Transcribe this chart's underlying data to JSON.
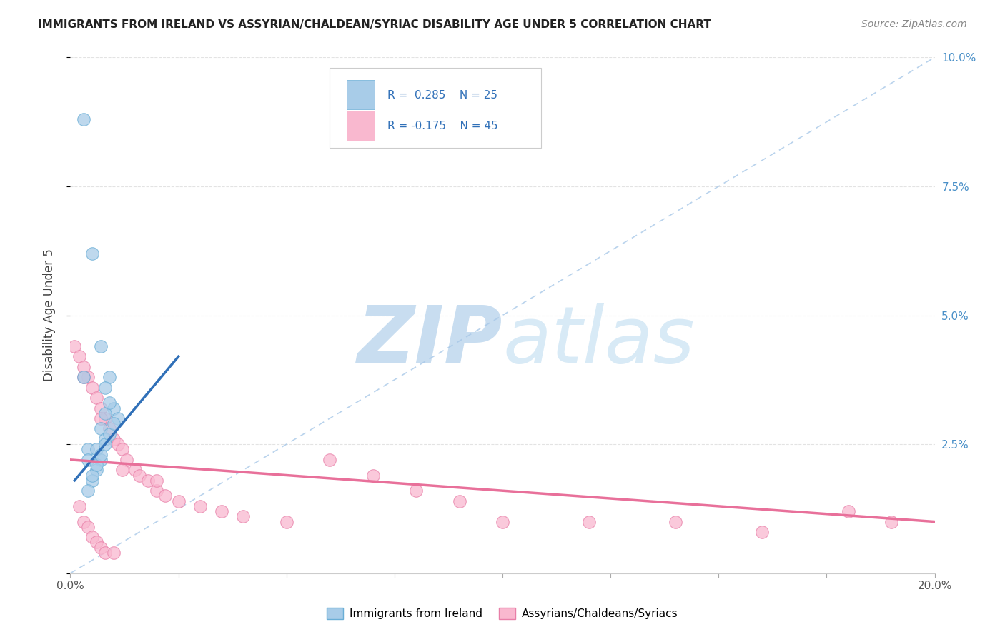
{
  "title": "IMMIGRANTS FROM IRELAND VS ASSYRIAN/CHALDEAN/SYRIAC DISABILITY AGE UNDER 5 CORRELATION CHART",
  "source": "Source: ZipAtlas.com",
  "ylabel": "Disability Age Under 5",
  "xlim": [
    0.0,
    0.2
  ],
  "ylim": [
    0.0,
    0.1
  ],
  "ireland_color": "#a8cce8",
  "ireland_edge": "#6aaed6",
  "assyrian_color": "#f9b8cf",
  "assyrian_edge": "#e87fa8",
  "trend_ireland_color": "#3070b8",
  "trend_assyrian_color": "#e8709a",
  "diag_color": "#a8c8e8",
  "watermark_zip_color": "#c5ddef",
  "watermark_atlas_color": "#d8e8f4",
  "background_color": "#ffffff",
  "grid_color": "#e0e0e0",
  "right_tick_color": "#4a90c8",
  "ireland_x": [
    0.003,
    0.005,
    0.004,
    0.004,
    0.003,
    0.007,
    0.009,
    0.008,
    0.01,
    0.011,
    0.007,
    0.008,
    0.006,
    0.007,
    0.006,
    0.005,
    0.004,
    0.005,
    0.006,
    0.007,
    0.008,
    0.009,
    0.01,
    0.008,
    0.009
  ],
  "ireland_y": [
    0.088,
    0.062,
    0.024,
    0.022,
    0.038,
    0.044,
    0.038,
    0.036,
    0.032,
    0.03,
    0.028,
    0.026,
    0.024,
    0.022,
    0.02,
    0.018,
    0.016,
    0.019,
    0.021,
    0.023,
    0.025,
    0.027,
    0.029,
    0.031,
    0.033
  ],
  "assyrian_x": [
    0.001,
    0.002,
    0.002,
    0.003,
    0.003,
    0.004,
    0.004,
    0.005,
    0.005,
    0.006,
    0.006,
    0.007,
    0.007,
    0.008,
    0.008,
    0.009,
    0.01,
    0.01,
    0.011,
    0.012,
    0.013,
    0.015,
    0.016,
    0.018,
    0.02,
    0.022,
    0.025,
    0.03,
    0.035,
    0.04,
    0.05,
    0.06,
    0.07,
    0.08,
    0.09,
    0.1,
    0.12,
    0.14,
    0.16,
    0.18,
    0.19,
    0.003,
    0.007,
    0.012,
    0.02
  ],
  "assyrian_y": [
    0.044,
    0.042,
    0.013,
    0.04,
    0.01,
    0.038,
    0.009,
    0.036,
    0.007,
    0.034,
    0.006,
    0.032,
    0.005,
    0.03,
    0.004,
    0.028,
    0.026,
    0.004,
    0.025,
    0.024,
    0.022,
    0.02,
    0.019,
    0.018,
    0.016,
    0.015,
    0.014,
    0.013,
    0.012,
    0.011,
    0.01,
    0.022,
    0.019,
    0.016,
    0.014,
    0.01,
    0.01,
    0.01,
    0.008,
    0.012,
    0.01,
    0.038,
    0.03,
    0.02,
    0.018
  ],
  "trend_ir_x0": 0.001,
  "trend_ir_x1": 0.025,
  "trend_ir_y0": 0.018,
  "trend_ir_y1": 0.042,
  "trend_as_x0": 0.0,
  "trend_as_x1": 0.2,
  "trend_as_y0": 0.022,
  "trend_as_y1": 0.01
}
